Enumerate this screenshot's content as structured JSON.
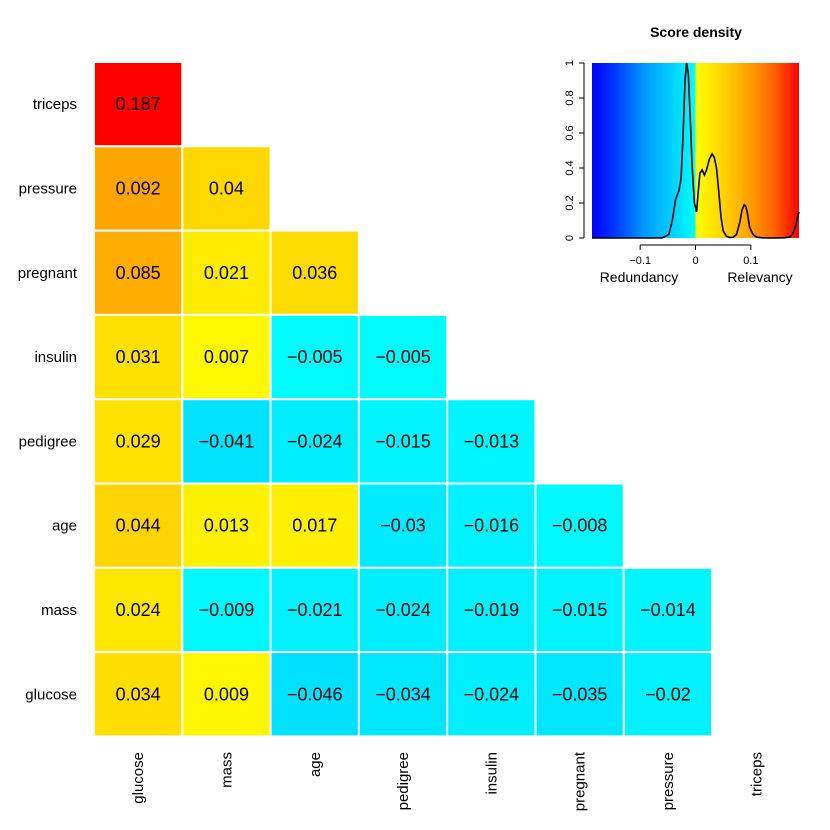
{
  "chart_data": [
    {
      "type": "heatmap",
      "rows": [
        "triceps",
        "pressure",
        "pregnant",
        "insulin",
        "pedigree",
        "age",
        "mass",
        "glucose"
      ],
      "columns": [
        "glucose",
        "mass",
        "age",
        "pedigree",
        "insulin",
        "pregnant",
        "pressure",
        "triceps"
      ],
      "cells": [
        [
          "0.187"
        ],
        [
          "0.092",
          "0.04"
        ],
        [
          "0.085",
          "0.021",
          "0.036"
        ],
        [
          "0.031",
          "0.007",
          "−0.005",
          "−0.005"
        ],
        [
          "0.029",
          "−0.041",
          "−0.024",
          "−0.015",
          "−0.013"
        ],
        [
          "0.044",
          "0.013",
          "0.017",
          "−0.03",
          "−0.016",
          "−0.008"
        ],
        [
          "0.024",
          "−0.009",
          "−0.021",
          "−0.024",
          "−0.019",
          "−0.015",
          "−0.014"
        ],
        [
          "0.034",
          "0.009",
          "−0.046",
          "−0.034",
          "−0.024",
          "−0.035",
          "−0.02"
        ]
      ],
      "values": [
        [
          0.187
        ],
        [
          0.092,
          0.04
        ],
        [
          0.085,
          0.021,
          0.036
        ],
        [
          0.031,
          0.007,
          -0.005,
          -0.005
        ],
        [
          0.029,
          -0.041,
          -0.024,
          -0.015,
          -0.013
        ],
        [
          0.044,
          0.013,
          0.017,
          -0.03,
          -0.016,
          -0.008
        ],
        [
          0.024,
          -0.009,
          -0.021,
          -0.024,
          -0.019,
          -0.015,
          -0.014
        ],
        [
          0.034,
          0.009,
          -0.046,
          -0.034,
          -0.024,
          -0.035,
          -0.02
        ]
      ],
      "color_range": [
        -0.187,
        0.187
      ],
      "colors": {
        "negative_max": "#0000ff",
        "negative_mid": "#00c0ff",
        "near_zero_neg": "#00ffff",
        "near_zero_pos": "#ffff00",
        "positive_mid": "#ffa500",
        "positive_max": "#ff0000",
        "cell_border": "#ffffff"
      }
    },
    {
      "type": "line",
      "title": "Score density",
      "xlabel": "",
      "ylabel": "",
      "xlim": [
        -0.187,
        0.187
      ],
      "ylim": [
        0,
        1
      ],
      "xticks": [
        -0.1,
        0,
        0.1
      ],
      "xtick_labels": [
        "−0.1",
        "0",
        "0.1"
      ],
      "yticks": [
        0,
        0.2,
        0.4,
        0.6,
        0.8,
        1
      ],
      "ytick_labels": [
        "0",
        "0.2",
        "0.4",
        "0.6",
        "0.8",
        "1"
      ],
      "captions": {
        "left": "Redundancy",
        "right": "Relevancy"
      },
      "series": [
        {
          "x": [
            -0.187,
            -0.08,
            -0.06,
            -0.048,
            -0.042,
            -0.036,
            -0.03,
            -0.026,
            -0.022,
            -0.019,
            -0.016,
            -0.013,
            -0.01,
            -0.006,
            -0.002,
            0.002,
            0.005,
            0.008,
            0.012,
            0.016,
            0.02,
            0.025,
            0.03,
            0.034,
            0.038,
            0.042,
            0.046,
            0.05,
            0.056,
            0.062,
            0.068,
            0.074,
            0.08,
            0.084,
            0.088,
            0.091,
            0.094,
            0.098,
            0.104,
            0.11,
            0.12,
            0.14,
            0.16,
            0.17,
            0.175,
            0.18,
            0.184,
            0.187
          ],
          "y": [
            0,
            0,
            0.001,
            0.02,
            0.1,
            0.22,
            0.27,
            0.34,
            0.62,
            0.9,
            1.0,
            0.94,
            0.72,
            0.4,
            0.2,
            0.15,
            0.27,
            0.37,
            0.39,
            0.36,
            0.39,
            0.45,
            0.48,
            0.46,
            0.4,
            0.27,
            0.12,
            0.04,
            0.01,
            0.003,
            0.004,
            0.02,
            0.09,
            0.16,
            0.19,
            0.18,
            0.14,
            0.06,
            0.02,
            0.005,
            0.001,
            0,
            0.001,
            0.005,
            0.02,
            0.06,
            0.11,
            0.15
          ],
          "color": "#000000"
        }
      ],
      "gradient_colors": [
        "#0000ff",
        "#0040ff",
        "#0099ff",
        "#00ccff",
        "#00ffff",
        "#ffff00",
        "#ffd700",
        "#ffa500",
        "#ff6600",
        "#ff0000"
      ]
    }
  ]
}
